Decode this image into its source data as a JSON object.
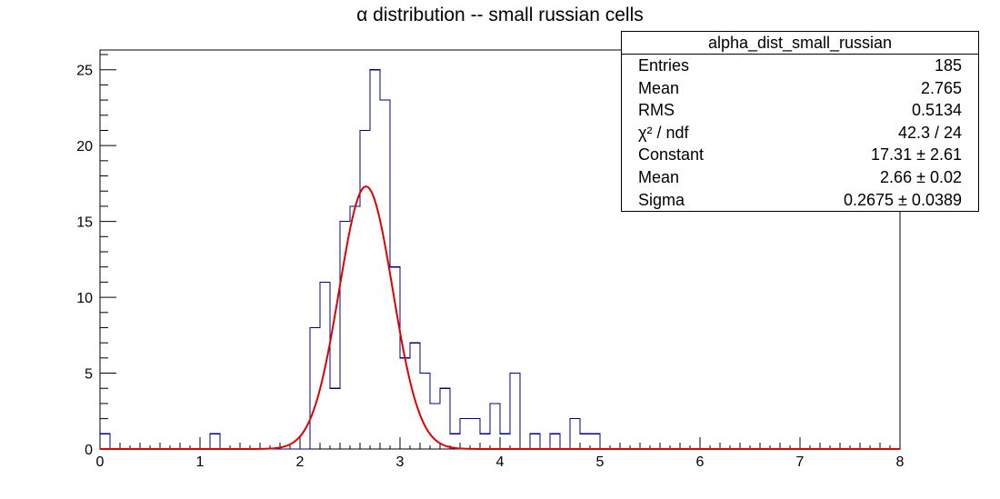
{
  "title": "α distribution -- small russian cells",
  "stats": {
    "title": "alpha_dist_small_russian",
    "rows": [
      {
        "label": "Entries",
        "value": "185"
      },
      {
        "label": "Mean",
        "value": "2.765"
      },
      {
        "label": "RMS",
        "value": "0.5134"
      },
      {
        "label": "χ² / ndf",
        "value": "42.3 / 24"
      },
      {
        "label": "Constant",
        "value": "17.31 ± 2.61"
      },
      {
        "label": "Mean",
        "value": "2.66 ± 0.02"
      },
      {
        "label": "Sigma",
        "value": "0.2675 ± 0.0389"
      }
    ]
  },
  "colors": {
    "histogram": "#00007f",
    "fit": "#e00000",
    "axis": "#000000"
  },
  "chart_data": {
    "type": "histogram",
    "xlim": [
      0,
      8
    ],
    "ylim": [
      0,
      26.3
    ],
    "bin_width": 0.1,
    "x_ticks": [
      0,
      1,
      2,
      3,
      4,
      5,
      6,
      7,
      8
    ],
    "y_ticks": [
      0,
      5,
      10,
      15,
      20,
      25
    ],
    "bins": [
      {
        "x": 0.0,
        "count": 1
      },
      {
        "x": 1.1,
        "count": 1
      },
      {
        "x": 2.1,
        "count": 8
      },
      {
        "x": 2.2,
        "count": 11
      },
      {
        "x": 2.3,
        "count": 4
      },
      {
        "x": 2.4,
        "count": 15
      },
      {
        "x": 2.5,
        "count": 16
      },
      {
        "x": 2.6,
        "count": 21
      },
      {
        "x": 2.7,
        "count": 25
      },
      {
        "x": 2.8,
        "count": 23
      },
      {
        "x": 2.9,
        "count": 12
      },
      {
        "x": 3.0,
        "count": 6
      },
      {
        "x": 3.1,
        "count": 7
      },
      {
        "x": 3.2,
        "count": 5
      },
      {
        "x": 3.3,
        "count": 3
      },
      {
        "x": 3.4,
        "count": 4
      },
      {
        "x": 3.5,
        "count": 1
      },
      {
        "x": 3.6,
        "count": 2
      },
      {
        "x": 3.7,
        "count": 2
      },
      {
        "x": 3.8,
        "count": 1
      },
      {
        "x": 3.9,
        "count": 3
      },
      {
        "x": 4.0,
        "count": 1
      },
      {
        "x": 4.1,
        "count": 5
      },
      {
        "x": 4.3,
        "count": 1
      },
      {
        "x": 4.5,
        "count": 1
      },
      {
        "x": 4.7,
        "count": 2
      },
      {
        "x": 4.8,
        "count": 1
      },
      {
        "x": 4.9,
        "count": 1
      }
    ],
    "fit": {
      "function": "gaus",
      "constant": 17.31,
      "mean": 2.66,
      "sigma": 0.2675,
      "range": [
        0,
        8
      ]
    }
  }
}
